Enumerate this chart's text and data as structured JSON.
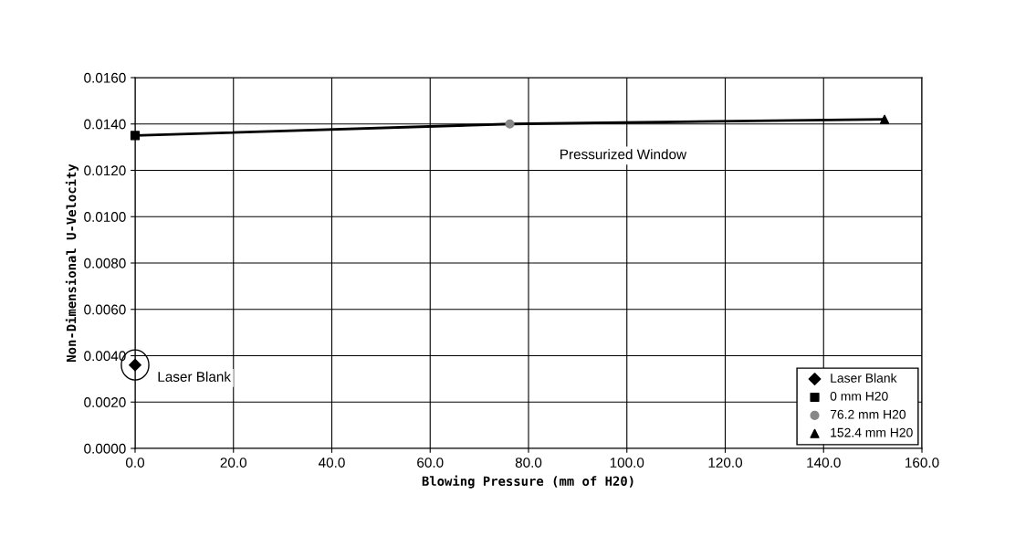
{
  "chart_data": {
    "type": "scatter",
    "xlabel": "Blowing Pressure (mm of H20)",
    "ylabel": "Non-Dimensional U-Velocity",
    "xlim": [
      0,
      160
    ],
    "ylim": [
      0,
      0.016
    ],
    "xticks": [
      {
        "value": 0,
        "label": "0.0"
      },
      {
        "value": 20,
        "label": "20.0"
      },
      {
        "value": 40,
        "label": "40.0"
      },
      {
        "value": 60,
        "label": "60.0"
      },
      {
        "value": 80,
        "label": "80.0"
      },
      {
        "value": 100,
        "label": "100.0"
      },
      {
        "value": 120,
        "label": "120.0"
      },
      {
        "value": 140,
        "label": "140.0"
      },
      {
        "value": 160,
        "label": "160.0"
      }
    ],
    "yticks": [
      {
        "value": 0,
        "label": "0.0000"
      },
      {
        "value": 0.002,
        "label": "0.0020"
      },
      {
        "value": 0.004,
        "label": "0.0040"
      },
      {
        "value": 0.006,
        "label": "0.0060"
      },
      {
        "value": 0.008,
        "label": "0.0080"
      },
      {
        "value": 0.01,
        "label": "0.0100"
      },
      {
        "value": 0.012,
        "label": "0.0120"
      },
      {
        "value": 0.014,
        "label": "0.0140"
      },
      {
        "value": 0.016,
        "label": "0.0160"
      }
    ],
    "grid": true,
    "legend": "bottom right",
    "series": [
      {
        "type": "line",
        "color": "#000000",
        "x": [
          0,
          76.2,
          152.4
        ],
        "values": [
          0.0135,
          0.014,
          0.0142
        ],
        "marker": "none"
      },
      {
        "name": "Laser Blank",
        "color": "#000000",
        "x": [
          0
        ],
        "values": [
          0.0036
        ],
        "marker": "diamond"
      },
      {
        "name": "0 mm H20",
        "color": "#000000",
        "x": [
          0
        ],
        "values": [
          0.0135
        ],
        "marker": "square"
      },
      {
        "name": "76.2 mm H20",
        "color": "#888888",
        "x": [
          76.2
        ],
        "values": [
          0.014
        ],
        "marker": "circle"
      },
      {
        "name": "152.4 mm H20",
        "color": "#000000",
        "x": [
          152.4
        ],
        "values": [
          0.0142
        ],
        "marker": "triangle"
      }
    ],
    "annotations": [
      "Pressurized Window",
      "Laser Blank"
    ]
  }
}
